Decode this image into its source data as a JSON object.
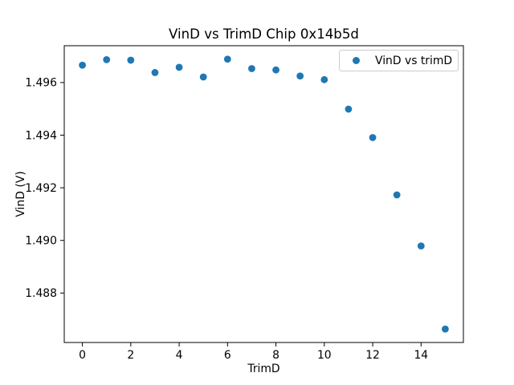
{
  "chart_data": {
    "type": "scatter",
    "title": "VinD vs TrimD Chip 0x14b5d",
    "xlabel": "TrimD",
    "ylabel": "VinD (V)",
    "legend": {
      "label": "VinD vs trimD",
      "position": "upper right"
    },
    "series_name": "VinD vs trimD",
    "marker_color": "#1f77b4",
    "grid": false,
    "x": [
      0,
      1,
      2,
      3,
      4,
      5,
      6,
      7,
      8,
      9,
      10,
      11,
      12,
      13,
      14,
      15
    ],
    "y": [
      1.49666,
      1.49687,
      1.49685,
      1.49638,
      1.49658,
      1.49621,
      1.49689,
      1.49653,
      1.49648,
      1.49625,
      1.49611,
      1.49499,
      1.49391,
      1.49173,
      1.48979,
      1.48663
    ],
    "xlim": [
      -0.75,
      15.75
    ],
    "ylim": [
      1.48612,
      1.4974
    ],
    "x_ticks": [
      0,
      2,
      4,
      6,
      8,
      10,
      12,
      14
    ],
    "x_tick_labels": [
      "0",
      "2",
      "4",
      "6",
      "8",
      "10",
      "12",
      "14"
    ],
    "y_ticks": [
      1.488,
      1.49,
      1.492,
      1.494,
      1.496
    ],
    "y_tick_labels": [
      "1.488",
      "1.490",
      "1.492",
      "1.494",
      "1.496"
    ]
  }
}
